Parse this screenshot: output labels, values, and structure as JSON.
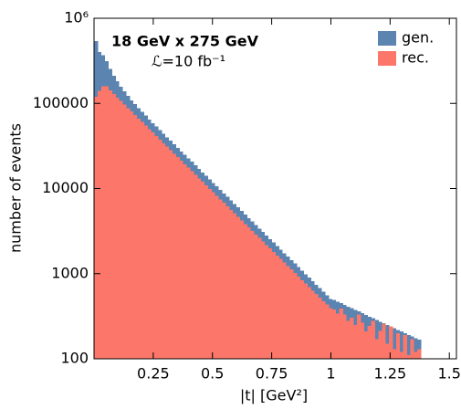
{
  "chart_data": {
    "type": "histogram",
    "xlabel": "|t| [GeV²]",
    "ylabel": "number of events",
    "annotations": [
      "18 GeV x 275 GeV",
      "ℒ=10 fb⁻¹"
    ],
    "legend": "upper right",
    "log_y": true,
    "grid": false,
    "bins": [
      0,
      0.015,
      0.03,
      0.045,
      0.06,
      0.075,
      0.09,
      0.105,
      0.12,
      0.135,
      0.15,
      0.165,
      0.18,
      0.195,
      0.21,
      0.225,
      0.24,
      0.255,
      0.27,
      0.285,
      0.3,
      0.315,
      0.33,
      0.345,
      0.36,
      0.375,
      0.39,
      0.405,
      0.42,
      0.435,
      0.45,
      0.465,
      0.48,
      0.495,
      0.51,
      0.525,
      0.54,
      0.555,
      0.57,
      0.585,
      0.6,
      0.615,
      0.63,
      0.645,
      0.66,
      0.675,
      0.69,
      0.705,
      0.72,
      0.735,
      0.75,
      0.765,
      0.78,
      0.795,
      0.81,
      0.825,
      0.84,
      0.855,
      0.87,
      0.885,
      0.9,
      0.915,
      0.93,
      0.945,
      0.96,
      0.975,
      0.99,
      1.005,
      1.02,
      1.035,
      1.05,
      1.065,
      1.08,
      1.095,
      1.11,
      1.125,
      1.14,
      1.155,
      1.17,
      1.185,
      1.2,
      1.215,
      1.23,
      1.245,
      1.26,
      1.275,
      1.29,
      1.305,
      1.32,
      1.335,
      1.35,
      1.365,
      1.38
    ],
    "series": [
      {
        "name": "gen.",
        "color": "#5b84b1",
        "values": [
          540000,
          402000,
          367000,
          314000,
          253000,
          211000,
          181000,
          157000,
          138000,
          122000,
          109000,
          97800,
          88000,
          79500,
          71900,
          64900,
          58600,
          53300,
          48400,
          44000,
          40000,
          36400,
          33200,
          30100,
          27300,
          24900,
          22700,
          20600,
          18700,
          17000,
          15500,
          14100,
          12800,
          11600,
          10600,
          9640,
          8760,
          7960,
          7250,
          6590,
          6000,
          5440,
          4950,
          4500,
          4100,
          3730,
          3390,
          3080,
          2800,
          2550,
          2320,
          2100,
          1920,
          1740,
          1590,
          1440,
          1320,
          1190,
          1080,
          986,
          897,
          815,
          742,
          675,
          613,
          557,
          507,
          490,
          470,
          449,
          430,
          410,
          392,
          375,
          359,
          343,
          328,
          313,
          299,
          286,
          273,
          262,
          250,
          240,
          228,
          219,
          209,
          200,
          191,
          182,
          174,
          168
        ]
      },
      {
        "name": "rec.",
        "color": "#fc766a",
        "values": [
          120000,
          141000,
          158000,
          158000,
          142000,
          129000,
          117000,
          107000,
          97000,
          88200,
          80200,
          73000,
          66300,
          60300,
          54900,
          49900,
          45400,
          41300,
          37500,
          34100,
          31000,
          28200,
          25700,
          23300,
          21200,
          19300,
          17600,
          16000,
          14500,
          13200,
          12000,
          10900,
          9930,
          9030,
          8210,
          7470,
          6790,
          6170,
          5620,
          5110,
          4650,
          4220,
          3840,
          3490,
          3180,
          2890,
          2630,
          2390,
          2170,
          1980,
          1800,
          1630,
          1490,
          1350,
          1230,
          1120,
          1020,
          924,
          840,
          764,
          695,
          632,
          575,
          523,
          475,
          432,
          393,
          380,
          340,
          390,
          333,
          280,
          304,
          250,
          330,
          266,
          210,
          243,
          280,
          170,
          212,
          260,
          150,
          240,
          130,
          200,
          120,
          190,
          110,
          170,
          120,
          130
        ]
      }
    ],
    "xlim": [
      0,
      1.53
    ],
    "xticks": [
      0.25,
      0.5,
      0.75,
      1,
      1.25,
      1.5
    ],
    "ylim": [
      100,
      1000000
    ],
    "yticks": [
      100,
      1000,
      10000,
      100000,
      {
        "value": 1000000,
        "label": "10⁶"
      }
    ]
  }
}
